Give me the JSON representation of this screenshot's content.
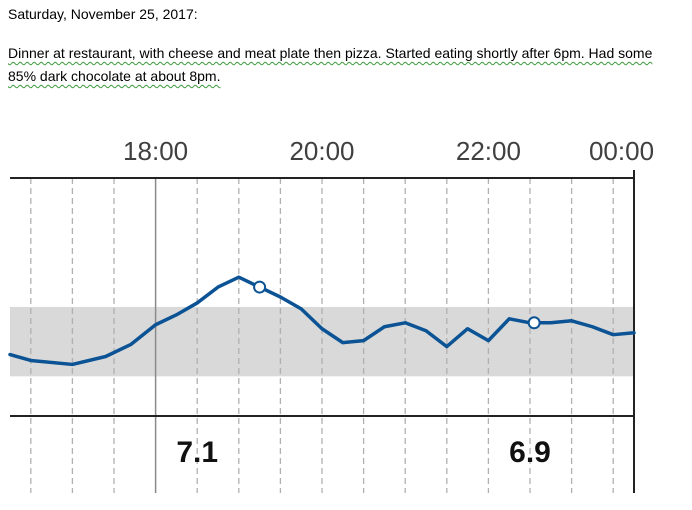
{
  "document": {
    "date_line": "Saturday, November 25, 2017:",
    "note": "Dinner at restaurant, with cheese and meat plate then pizza. Started eating shortly after 6pm.  Had some 85% dark chocolate at about 8pm."
  },
  "chart_data": {
    "type": "line",
    "x_unit": "hours",
    "x_range": [
      16.25,
      23.75
    ],
    "y_range": [
      2,
      14
    ],
    "target_band": [
      4.0,
      7.5
    ],
    "tick_labels": [
      "18:00",
      "20:00",
      "22:00",
      "00:00"
    ],
    "tick_positions": [
      18,
      20,
      22,
      23.6
    ],
    "markers": [
      19.25,
      22.55
    ],
    "series": [
      {
        "x": [
          16.25,
          16.5,
          17.0,
          17.4,
          17.7,
          18.0,
          18.25,
          18.5,
          18.75,
          19.0,
          19.25,
          19.5,
          19.75,
          20.0,
          20.25,
          20.5,
          20.75,
          21.0,
          21.25,
          21.5,
          21.75,
          22.0,
          22.25,
          22.5,
          22.75,
          23.0,
          23.25,
          23.5,
          23.75
        ],
        "y": [
          5.1,
          4.8,
          4.6,
          5.0,
          5.6,
          6.6,
          7.1,
          7.7,
          8.5,
          9.0,
          8.5,
          8.0,
          7.4,
          6.4,
          5.7,
          5.8,
          6.5,
          6.7,
          6.3,
          5.5,
          6.4,
          5.8,
          6.9,
          6.7,
          6.7,
          6.8,
          6.5,
          6.1,
          6.2
        ]
      }
    ],
    "point_values": [
      {
        "x": 18.5,
        "label": "7.1"
      },
      {
        "x": 22.5,
        "label": "6.9"
      }
    ],
    "colors": {
      "line": "#0b5394",
      "band": "#d9d9d9",
      "grid": "#b0b0b0"
    }
  }
}
